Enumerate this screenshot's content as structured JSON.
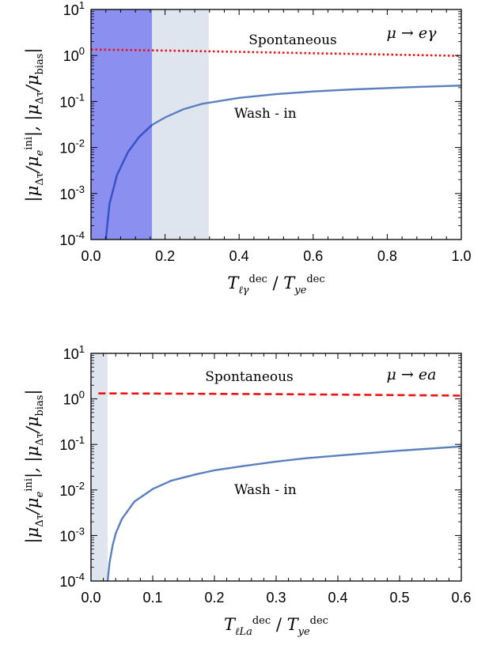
{
  "chart_data": [
    {
      "type": "line",
      "scale_y": "log",
      "xlim": [
        0.0,
        1.0
      ],
      "ylim": [
        0.0001,
        10
      ],
      "x_ticks": [
        "0.0",
        "0.2",
        "0.4",
        "0.6",
        "0.8",
        "1.0"
      ],
      "x_tick_values": [
        0.0,
        0.2,
        0.4,
        0.6,
        0.8,
        1.0
      ],
      "y_ticks": [
        {
          "base": "10",
          "exp": "1",
          "value": 10
        },
        {
          "base": "10",
          "exp": "0",
          "value": 1
        },
        {
          "base": "10",
          "exp": "-1",
          "value": 0.1
        },
        {
          "base": "10",
          "exp": "-2",
          "value": 0.01
        },
        {
          "base": "10",
          "exp": "-3",
          "value": 0.001
        },
        {
          "base": "10",
          "exp": "-4",
          "value": 0.0001
        }
      ],
      "xlabel": "T_{ℓγ}^{dec} / T_{y_e}^{dec}",
      "ylabel": "|μ_{Δτ}/μ_e^{ini}|, |μ_{Δτ}/μ_bias|",
      "corner_label": "μ → eγ",
      "shaded_regions": [
        {
          "x": [
            0.0,
            0.165
          ],
          "color": "#8a8ff0"
        },
        {
          "x": [
            0.165,
            0.318
          ],
          "color": "#dfe5ef"
        }
      ],
      "series": [
        {
          "name": "Spontaneous",
          "style": "dotted",
          "color": "#ee1111",
          "x": [
            0.0,
            0.2,
            0.4,
            0.6,
            0.8,
            1.0
          ],
          "y": [
            1.35,
            1.28,
            1.2,
            1.12,
            1.05,
            0.98
          ]
        },
        {
          "name": "Wash - in",
          "style": "solid",
          "color": "#5a7fbf",
          "x": [
            0.04,
            0.05,
            0.07,
            0.1,
            0.13,
            0.165,
            0.2,
            0.25,
            0.3,
            0.4,
            0.5,
            0.6,
            0.7,
            0.8,
            0.9,
            1.0
          ],
          "y": [
            0.0001,
            0.0006,
            0.0025,
            0.008,
            0.017,
            0.031,
            0.045,
            0.068,
            0.089,
            0.12,
            0.145,
            0.165,
            0.182,
            0.196,
            0.21,
            0.222
          ]
        }
      ]
    },
    {
      "type": "line",
      "scale_y": "log",
      "xlim": [
        0.0,
        0.6
      ],
      "ylim": [
        0.0001,
        10
      ],
      "x_ticks": [
        "0.0",
        "0.1",
        "0.2",
        "0.3",
        "0.4",
        "0.5",
        "0.6"
      ],
      "x_tick_values": [
        0.0,
        0.1,
        0.2,
        0.3,
        0.4,
        0.5,
        0.6
      ],
      "y_ticks": [
        {
          "base": "10",
          "exp": "1",
          "value": 10
        },
        {
          "base": "10",
          "exp": "0",
          "value": 1
        },
        {
          "base": "10",
          "exp": "-1",
          "value": 0.1
        },
        {
          "base": "10",
          "exp": "-2",
          "value": 0.01
        },
        {
          "base": "10",
          "exp": "-3",
          "value": 0.001
        },
        {
          "base": "10",
          "exp": "-4",
          "value": 0.0001
        }
      ],
      "xlabel": "T_{ℓ_L a}^{dec} / T_{y_e}^{dec}",
      "ylabel": "|μ_{Δτ}/μ_e^{ini}|, |μ_{Δτ}/μ_bias|",
      "corner_label": "μ → ea",
      "shaded_regions": [
        {
          "x": [
            0.0,
            0.027
          ],
          "color": "#dfe5ef"
        }
      ],
      "series": [
        {
          "name": "Spontaneous",
          "style": "dashed",
          "color": "#ee1111",
          "x": [
            0.012,
            0.1,
            0.2,
            0.3,
            0.4,
            0.5,
            0.6
          ],
          "y": [
            1.32,
            1.31,
            1.29,
            1.27,
            1.24,
            1.21,
            1.18
          ]
        },
        {
          "name": "Wash - in",
          "style": "solid",
          "color": "#5a7fbf",
          "x": [
            0.027,
            0.03,
            0.035,
            0.04,
            0.05,
            0.07,
            0.1,
            0.13,
            0.17,
            0.2,
            0.25,
            0.3,
            0.35,
            0.4,
            0.5,
            0.6
          ],
          "y": [
            0.0001,
            0.00025,
            0.0006,
            0.0011,
            0.0023,
            0.0055,
            0.0105,
            0.016,
            0.022,
            0.027,
            0.034,
            0.042,
            0.05,
            0.057,
            0.073,
            0.09
          ]
        }
      ]
    }
  ]
}
